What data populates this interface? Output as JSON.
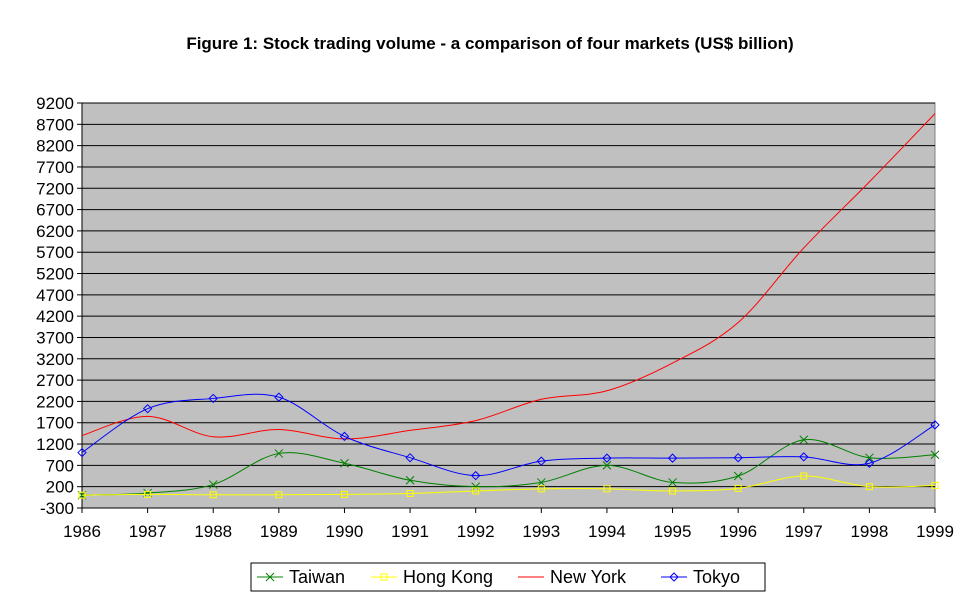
{
  "chart_data": {
    "type": "line",
    "title": "Figure 1: Stock trading volume - a comparison of four markets (US$ billion)",
    "xlabel": "",
    "ylabel": "",
    "x": [
      "1986",
      "1987",
      "1988",
      "1989",
      "1990",
      "1991",
      "1992",
      "1993",
      "1994",
      "1995",
      "1996",
      "1997",
      "1998",
      "1999"
    ],
    "ylim": [
      -300,
      9200
    ],
    "yticks": [
      -300,
      200,
      700,
      1200,
      1700,
      2200,
      2700,
      3200,
      3700,
      4200,
      4700,
      5200,
      5700,
      6200,
      6700,
      7200,
      7700,
      8200,
      8700,
      9200
    ],
    "grid": true,
    "legend_position": "bottom",
    "plot_background": "#C0C0C0",
    "series": [
      {
        "name": "Taiwan",
        "color": "#008000",
        "marker": "x",
        "values": [
          0,
          50,
          250,
          980,
          750,
          350,
          200,
          300,
          700,
          300,
          450,
          1300,
          880,
          950
        ]
      },
      {
        "name": "Hong Kong",
        "color": "#FFFF00",
        "marker": "square",
        "values": [
          0,
          20,
          10,
          10,
          20,
          40,
          100,
          150,
          150,
          100,
          160,
          450,
          200,
          230
        ]
      },
      {
        "name": "New York",
        "color": "#FF0000",
        "marker": "none",
        "values": [
          1400,
          1850,
          1370,
          1540,
          1320,
          1520,
          1750,
          2250,
          2450,
          3100,
          4050,
          5800,
          7350,
          8950
        ]
      },
      {
        "name": "Tokyo",
        "color": "#0000FF",
        "marker": "diamond",
        "values": [
          1000,
          2030,
          2270,
          2300,
          1380,
          880,
          460,
          800,
          870,
          870,
          880,
          900,
          750,
          1650
        ]
      }
    ]
  }
}
